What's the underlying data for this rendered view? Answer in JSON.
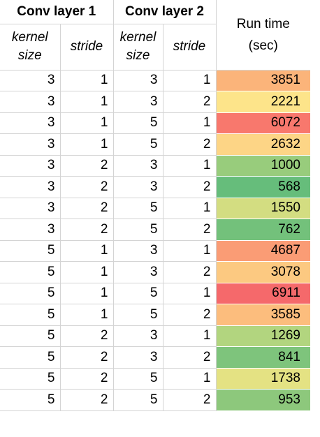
{
  "headers": {
    "conv_layer_1": "Conv layer 1",
    "conv_layer_2": "Conv layer 2",
    "run_time": "Run time",
    "run_time_unit": "(sec)",
    "kernel_line1": "kernel",
    "kernel_line2": "size",
    "stride": "stride"
  },
  "rows": [
    {
      "k1": "3",
      "s1": "1",
      "k2": "3",
      "s2": "1",
      "time": "3851",
      "color": "#fbb47a"
    },
    {
      "k1": "3",
      "s1": "1",
      "k2": "3",
      "s2": "2",
      "time": "2221",
      "color": "#fde48a"
    },
    {
      "k1": "3",
      "s1": "1",
      "k2": "5",
      "s2": "1",
      "time": "6072",
      "color": "#f8786d"
    },
    {
      "k1": "3",
      "s1": "1",
      "k2": "5",
      "s2": "2",
      "time": "2632",
      "color": "#fdd586"
    },
    {
      "k1": "3",
      "s1": "2",
      "k2": "3",
      "s2": "1",
      "time": "1000",
      "color": "#98cc7c"
    },
    {
      "k1": "3",
      "s1": "2",
      "k2": "3",
      "s2": "2",
      "time": "568",
      "color": "#66bd7b"
    },
    {
      "k1": "3",
      "s1": "2",
      "k2": "5",
      "s2": "1",
      "time": "1550",
      "color": "#d3dd81"
    },
    {
      "k1": "3",
      "s1": "2",
      "k2": "5",
      "s2": "2",
      "time": "762",
      "color": "#73c17b"
    },
    {
      "k1": "5",
      "s1": "1",
      "k2": "3",
      "s2": "1",
      "time": "4687",
      "color": "#fa9c75"
    },
    {
      "k1": "5",
      "s1": "1",
      "k2": "3",
      "s2": "2",
      "time": "3078",
      "color": "#fcc981"
    },
    {
      "k1": "5",
      "s1": "1",
      "k2": "5",
      "s2": "1",
      "time": "6911",
      "color": "#f5696b"
    },
    {
      "k1": "5",
      "s1": "1",
      "k2": "5",
      "s2": "2",
      "time": "3585",
      "color": "#fcbd7d"
    },
    {
      "k1": "5",
      "s1": "2",
      "k2": "3",
      "s2": "1",
      "time": "1269",
      "color": "#b2d57f"
    },
    {
      "k1": "5",
      "s1": "2",
      "k2": "3",
      "s2": "2",
      "time": "841",
      "color": "#7ec47c"
    },
    {
      "k1": "5",
      "s1": "2",
      "k2": "5",
      "s2": "1",
      "time": "1738",
      "color": "#e4e283"
    },
    {
      "k1": "5",
      "s1": "2",
      "k2": "5",
      "s2": "2",
      "time": "953",
      "color": "#8dc87c"
    }
  ]
}
